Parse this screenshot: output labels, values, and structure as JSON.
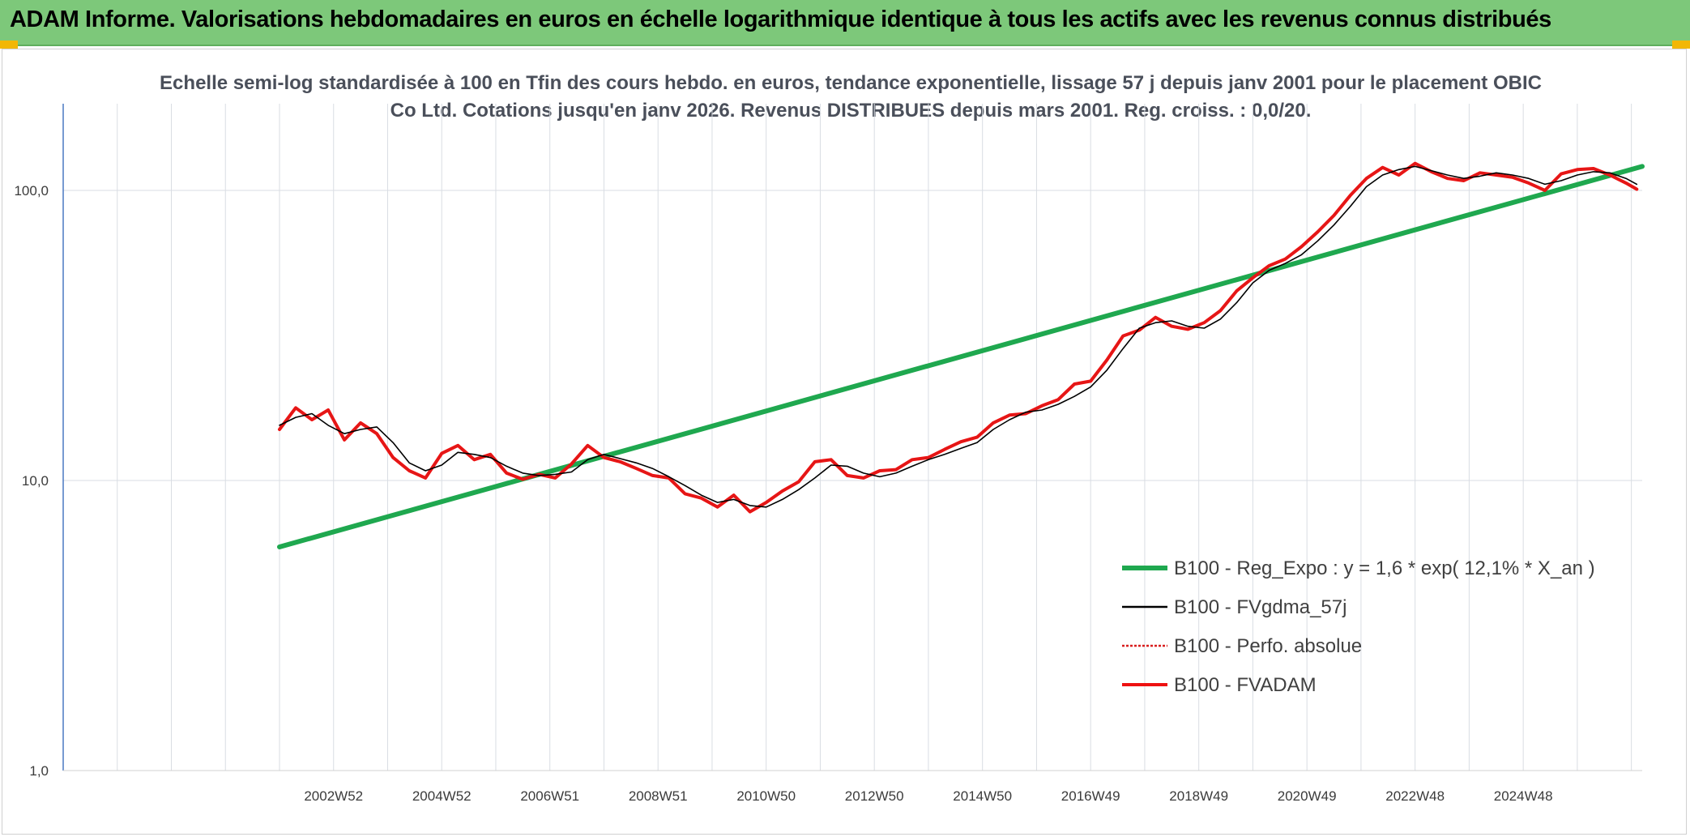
{
  "header": {
    "title": "ADAM Informe. Valorisations hebdomadaires en euros en échelle logarithmique identique à tous les actifs avec les revenus connus distribués"
  },
  "colors": {
    "banner": "#7dc87a",
    "corner_accent": "#f2b705",
    "regression": "#1fa84f",
    "smoothed": "#000000",
    "absolute": "#d81e1e",
    "fvadam": "#ee1111",
    "grid": "#d9dde3",
    "axis": "#4a78c2"
  },
  "chart_data": {
    "type": "line",
    "title": "Echelle semi-log standardisée à 100 en Tfin des cours hebdo. en euros, tendance exponentielle, lissage 57 j depuis janv 2001 pour le placement OBIC Co Ltd. Cotations jusqu'en janv 2026. Revenus DISTRIBUES depuis mars 2001. Reg. croiss. : 0,0/20.",
    "y_scale": "log",
    "ylim": [
      1,
      200
    ],
    "xlim": [
      1997.0,
      2026.2
    ],
    "y_tick_labels": [
      "1,0",
      "10,0",
      "100,0"
    ],
    "y_tick_values": [
      1,
      10,
      100
    ],
    "x_tick_labels": [
      "2002W52",
      "2004W52",
      "2006W51",
      "2008W51",
      "2010W50",
      "2012W50",
      "2014W50",
      "2016W49",
      "2018W49",
      "2020W49",
      "2022W48",
      "2024W48"
    ],
    "x_tick_values": [
      2002.0,
      2004.0,
      2006.0,
      2008.0,
      2010.0,
      2012.0,
      2014.0,
      2016.0,
      2018.0,
      2020.0,
      2022.0,
      2024.0
    ],
    "grid": true,
    "legend_position": "bottom-right",
    "legend": [
      {
        "label": "B100 - Reg_Expo : y = 1,6 * exp( 12,1% *  X_an )",
        "style": "thick-green"
      },
      {
        "label": "B100 - FVgdma_57j",
        "style": "thin-black"
      },
      {
        "label": "B100 - Perfo. absolue",
        "style": "dotted-red"
      },
      {
        "label": "B100 - FVADAM",
        "style": "thick-red"
      }
    ],
    "series": [
      {
        "name": "B100 - Reg_Expo : y = 1,6 * exp( 12,1% *  X_an )",
        "x": [
          2001.0,
          2026.2
        ],
        "y": [
          5.9,
          121
        ]
      },
      {
        "name": "B100 - FVgdma_57j",
        "x": [
          2001.0,
          2001.3,
          2001.6,
          2001.9,
          2002.2,
          2002.5,
          2002.8,
          2003.1,
          2003.4,
          2003.7,
          2004.0,
          2004.3,
          2004.6,
          2004.9,
          2005.2,
          2005.5,
          2005.8,
          2006.1,
          2006.4,
          2006.7,
          2007.0,
          2007.3,
          2007.6,
          2007.9,
          2008.2,
          2008.5,
          2008.8,
          2009.1,
          2009.4,
          2009.7,
          2010.0,
          2010.3,
          2010.6,
          2010.9,
          2011.2,
          2011.5,
          2011.8,
          2012.1,
          2012.4,
          2012.7,
          2013.0,
          2013.3,
          2013.6,
          2013.9,
          2014.2,
          2014.5,
          2014.8,
          2015.1,
          2015.4,
          2015.7,
          2016.0,
          2016.3,
          2016.6,
          2016.9,
          2017.2,
          2017.5,
          2017.8,
          2018.1,
          2018.4,
          2018.7,
          2019.0,
          2019.3,
          2019.6,
          2019.9,
          2020.2,
          2020.5,
          2020.8,
          2021.1,
          2021.4,
          2021.7,
          2022.0,
          2022.3,
          2022.6,
          2022.9,
          2023.2,
          2023.5,
          2023.8,
          2024.1,
          2024.4,
          2024.7,
          2025.0,
          2025.3,
          2025.6,
          2025.9,
          2026.1
        ],
        "y": [
          15.5,
          16.5,
          17.0,
          15.5,
          14.5,
          15.0,
          15.3,
          13.5,
          11.5,
          10.8,
          11.3,
          12.5,
          12.3,
          12.0,
          11.2,
          10.6,
          10.4,
          10.5,
          10.7,
          11.8,
          12.3,
          11.9,
          11.5,
          11.0,
          10.3,
          9.6,
          8.9,
          8.4,
          8.6,
          8.2,
          8.1,
          8.6,
          9.3,
          10.2,
          11.3,
          11.2,
          10.6,
          10.3,
          10.6,
          11.2,
          11.8,
          12.3,
          12.9,
          13.5,
          15.0,
          16.2,
          17.2,
          17.5,
          18.3,
          19.5,
          21.0,
          24.0,
          28.5,
          33.5,
          35.0,
          35.5,
          34.0,
          33.5,
          36.0,
          41.0,
          48.0,
          53.0,
          56.0,
          60.0,
          67.0,
          76.0,
          88.0,
          103.0,
          113.0,
          118.0,
          121.0,
          117.0,
          113.0,
          110.0,
          112.0,
          115.0,
          113.0,
          110.0,
          105.0,
          108.0,
          113.0,
          116.0,
          115.0,
          110.0,
          105.0
        ]
      },
      {
        "name": "B100 - Perfo. absolue",
        "x": [
          2001.0,
          2001.3,
          2001.6,
          2001.9,
          2002.2,
          2002.5,
          2002.8,
          2003.1,
          2003.4,
          2003.7,
          2004.0,
          2004.3,
          2004.6,
          2004.9,
          2005.2,
          2005.5,
          2005.8,
          2006.1,
          2006.4,
          2006.7,
          2007.0,
          2007.3,
          2007.6,
          2007.9,
          2008.2,
          2008.5,
          2008.8,
          2009.1,
          2009.4,
          2009.7,
          2010.0,
          2010.3,
          2010.6,
          2010.9,
          2011.2,
          2011.5,
          2011.8,
          2012.1,
          2012.4,
          2012.7,
          2013.0,
          2013.3,
          2013.6,
          2013.9,
          2014.2,
          2014.5,
          2014.8,
          2015.1,
          2015.4,
          2015.7,
          2016.0,
          2016.3,
          2016.6,
          2016.9,
          2017.2,
          2017.5,
          2017.8,
          2018.1,
          2018.4,
          2018.7,
          2019.0,
          2019.3,
          2019.6,
          2019.9,
          2020.2,
          2020.5,
          2020.8,
          2021.1,
          2021.4,
          2021.7,
          2022.0,
          2022.3,
          2022.6,
          2022.9,
          2023.2,
          2023.5,
          2023.8,
          2024.1,
          2024.4,
          2024.7,
          2025.0,
          2025.3,
          2025.6,
          2025.9,
          2026.1
        ],
        "y": [
          15.0,
          17.8,
          16.2,
          17.5,
          13.8,
          15.8,
          14.5,
          12.0,
          10.8,
          10.2,
          12.4,
          13.2,
          11.8,
          12.3,
          10.6,
          10.1,
          10.5,
          10.2,
          11.4,
          13.2,
          12.0,
          11.6,
          11.0,
          10.4,
          10.2,
          9.0,
          8.7,
          8.1,
          8.9,
          7.8,
          8.4,
          9.2,
          9.9,
          11.6,
          11.8,
          10.4,
          10.2,
          10.8,
          10.9,
          11.8,
          12.0,
          12.8,
          13.6,
          14.1,
          15.8,
          16.8,
          17.0,
          18.1,
          19.0,
          21.5,
          22.0,
          26.0,
          31.5,
          33.0,
          36.5,
          34.0,
          33.2,
          35.0,
          38.5,
          45.0,
          50.0,
          55.0,
          58.0,
          64.0,
          72.0,
          82.0,
          96.0,
          110.0,
          120.0,
          113.0,
          124.0,
          116.0,
          110.0,
          108.0,
          115.0,
          113.0,
          111.0,
          106.0,
          100.0,
          114.0,
          118.0,
          119.0,
          113.0,
          106.0,
          101.0
        ]
      },
      {
        "name": "B100 - FVADAM",
        "x": [
          2001.0,
          2001.3,
          2001.6,
          2001.9,
          2002.2,
          2002.5,
          2002.8,
          2003.1,
          2003.4,
          2003.7,
          2004.0,
          2004.3,
          2004.6,
          2004.9,
          2005.2,
          2005.5,
          2005.8,
          2006.1,
          2006.4,
          2006.7,
          2007.0,
          2007.3,
          2007.6,
          2007.9,
          2008.2,
          2008.5,
          2008.8,
          2009.1,
          2009.4,
          2009.7,
          2010.0,
          2010.3,
          2010.6,
          2010.9,
          2011.2,
          2011.5,
          2011.8,
          2012.1,
          2012.4,
          2012.7,
          2013.0,
          2013.3,
          2013.6,
          2013.9,
          2014.2,
          2014.5,
          2014.8,
          2015.1,
          2015.4,
          2015.7,
          2016.0,
          2016.3,
          2016.6,
          2016.9,
          2017.2,
          2017.5,
          2017.8,
          2018.1,
          2018.4,
          2018.7,
          2019.0,
          2019.3,
          2019.6,
          2019.9,
          2020.2,
          2020.5,
          2020.8,
          2021.1,
          2021.4,
          2021.7,
          2022.0,
          2022.3,
          2022.6,
          2022.9,
          2023.2,
          2023.5,
          2023.8,
          2024.1,
          2024.4,
          2024.7,
          2025.0,
          2025.3,
          2025.6,
          2025.9,
          2026.1
        ],
        "y": [
          15.0,
          17.8,
          16.2,
          17.5,
          13.8,
          15.8,
          14.5,
          12.0,
          10.8,
          10.2,
          12.4,
          13.2,
          11.8,
          12.3,
          10.6,
          10.1,
          10.5,
          10.2,
          11.4,
          13.2,
          12.0,
          11.6,
          11.0,
          10.4,
          10.2,
          9.0,
          8.7,
          8.1,
          8.9,
          7.8,
          8.4,
          9.2,
          9.9,
          11.6,
          11.8,
          10.4,
          10.2,
          10.8,
          10.9,
          11.8,
          12.0,
          12.8,
          13.6,
          14.1,
          15.8,
          16.8,
          17.0,
          18.1,
          19.0,
          21.5,
          22.0,
          26.0,
          31.5,
          33.0,
          36.5,
          34.0,
          33.2,
          35.0,
          38.5,
          45.0,
          50.0,
          55.0,
          58.0,
          64.0,
          72.0,
          82.0,
          96.0,
          110.0,
          120.0,
          113.0,
          124.0,
          116.0,
          110.0,
          108.0,
          115.0,
          113.0,
          111.0,
          106.0,
          100.0,
          114.0,
          118.0,
          119.0,
          113.0,
          106.0,
          101.0
        ]
      }
    ]
  }
}
